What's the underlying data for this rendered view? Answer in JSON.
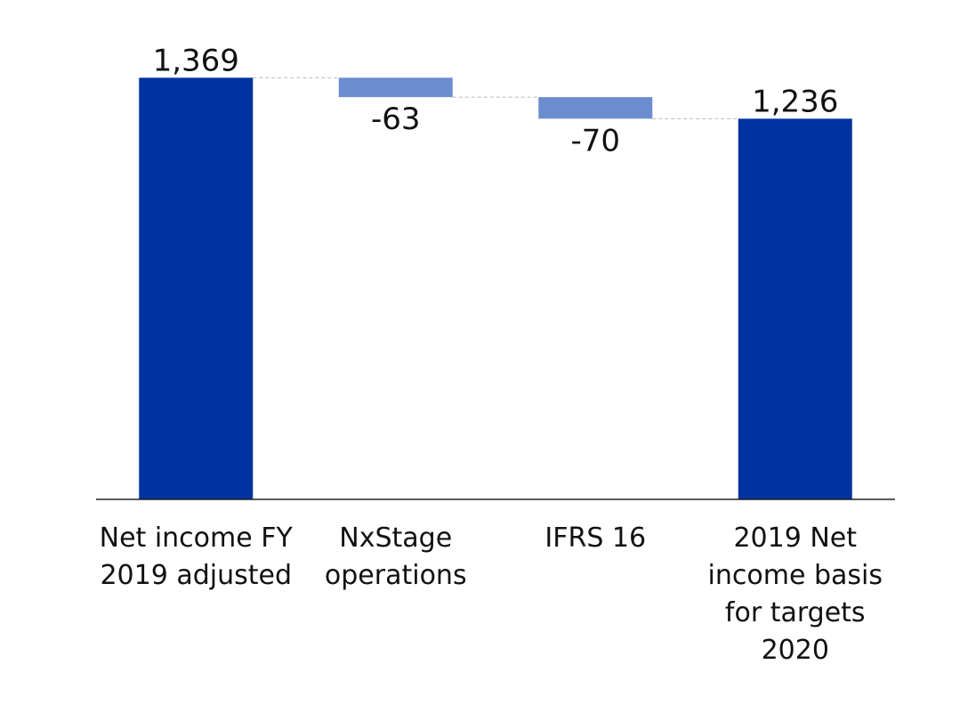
{
  "chart_data": {
    "type": "waterfall",
    "categories": [
      "Net income FY 2019 adjusted",
      "NxStage operations",
      "IFRS 16",
      "2019 Net income basis for targets 2020"
    ],
    "values": [
      1369,
      -63,
      -70,
      1236
    ],
    "value_labels": [
      "1,369",
      "-63",
      "-70",
      "1,236"
    ],
    "is_total": [
      true,
      false,
      false,
      true
    ],
    "colors": {
      "total": "#00339f",
      "change": "#6b8ccf"
    },
    "ylim": [
      0,
      1500
    ]
  }
}
